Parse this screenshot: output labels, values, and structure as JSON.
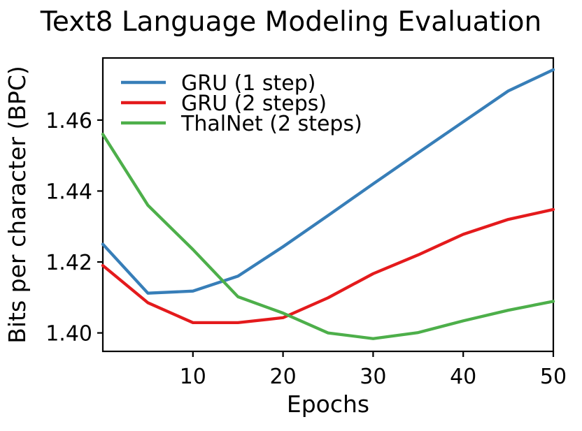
{
  "title": "Text8 Language Modeling Evaluation",
  "chart_data": {
    "type": "line",
    "title": "Text8 Language Modeling Evaluation",
    "xlabel": "Epochs",
    "ylabel": "Bits per character (BPC)",
    "xlim": [
      0,
      50
    ],
    "ylim": [
      1.3948,
      1.4775
    ],
    "xticks": [
      10,
      20,
      30,
      40,
      50
    ],
    "xtick_labels": [
      "10",
      "20",
      "30",
      "40",
      "50"
    ],
    "yticks": [
      1.4,
      1.42,
      1.44,
      1.46
    ],
    "ytick_labels": [
      "1.40",
      "1.42",
      "1.44",
      "1.46"
    ],
    "grid": false,
    "legend_position": "upper-left",
    "x": [
      0,
      5,
      10,
      15,
      20,
      25,
      30,
      35,
      40,
      45,
      50
    ],
    "series": [
      {
        "name": "GRU (1 step)",
        "color": "#377eb8",
        "values": [
          1.425,
          1.4112,
          1.4118,
          1.416,
          1.4243,
          1.4331,
          1.442,
          1.4508,
          1.4595,
          1.4682,
          1.4742
        ]
      },
      {
        "name": "GRU (2 steps)",
        "color": "#e41a1c",
        "values": [
          1.419,
          1.4085,
          1.4029,
          1.4029,
          1.4043,
          1.4099,
          1.4167,
          1.422,
          1.4278,
          1.432,
          1.4348
        ]
      },
      {
        "name": "ThalNet (2 steps)",
        "color": "#4daf4a",
        "values": [
          1.456,
          1.436,
          1.4235,
          1.4102,
          1.4056,
          1.4,
          1.3984,
          1.4001,
          1.4034,
          1.4064,
          1.4089
        ]
      }
    ],
    "colors": {
      "axis": "#000000",
      "background": "#ffffff"
    }
  }
}
